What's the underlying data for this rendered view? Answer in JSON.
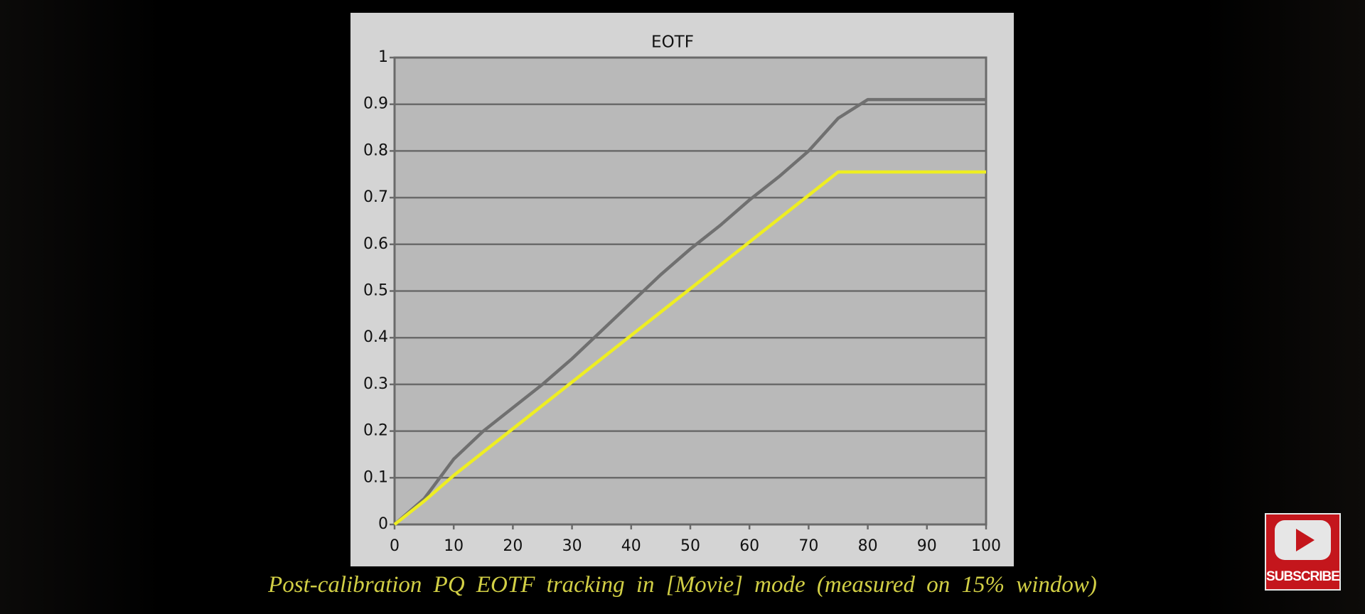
{
  "chart_data": {
    "type": "line",
    "title": "EOTF",
    "x": [
      0,
      5,
      10,
      15,
      20,
      25,
      30,
      35,
      40,
      45,
      50,
      55,
      60,
      65,
      70,
      75,
      80,
      85,
      90,
      95,
      100
    ],
    "series": [
      {
        "color": "#707070",
        "values": [
          0,
          0.055,
          0.14,
          0.2,
          0.25,
          0.3,
          0.355,
          0.415,
          0.475,
          0.535,
          0.59,
          0.64,
          0.695,
          0.745,
          0.8,
          0.87,
          0.91,
          0.91,
          0.91,
          0.91,
          0.91
        ]
      },
      {
        "color": "#eeee22",
        "values": [
          0,
          0.05,
          0.105,
          0.155,
          0.205,
          0.255,
          0.305,
          0.355,
          0.405,
          0.455,
          0.505,
          0.555,
          0.605,
          0.655,
          0.705,
          0.755,
          0.755,
          0.755,
          0.755,
          0.755,
          0.755
        ]
      }
    ],
    "xlim": [
      0,
      100
    ],
    "xticks": [
      0,
      10,
      20,
      30,
      40,
      50,
      60,
      70,
      80,
      90,
      100
    ],
    "ylim": [
      0,
      1
    ],
    "yticks": [
      0,
      0.1,
      0.2,
      0.3,
      0.4,
      0.5,
      0.6,
      0.7,
      0.8,
      0.9,
      1
    ],
    "grid": true
  },
  "caption": "Post-calibration PQ EOTF tracking in [Movie] mode (measured on 15% window)",
  "subscribe": "SUBSCRIBE"
}
